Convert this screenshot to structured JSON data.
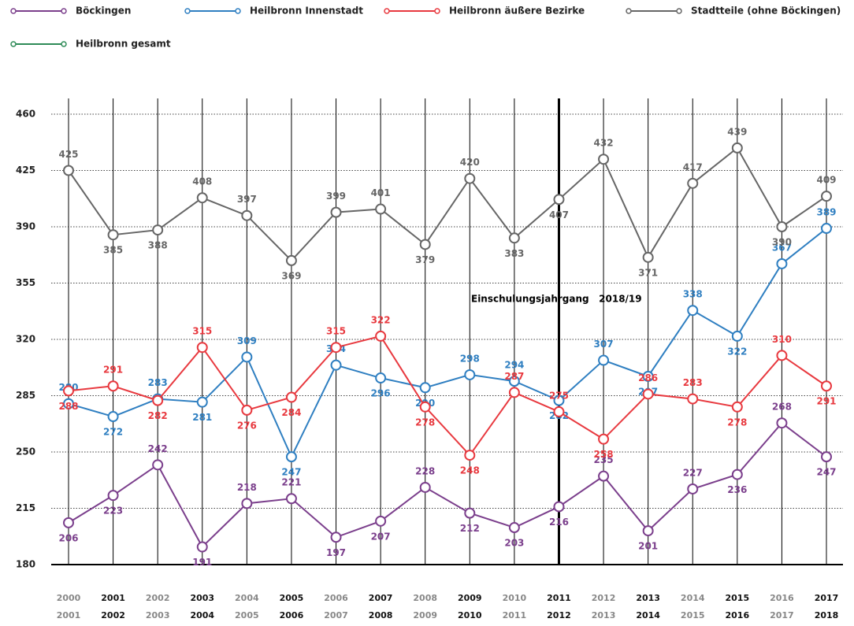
{
  "chart_data": {
    "type": "line",
    "categories": [
      [
        "2000",
        "2001"
      ],
      [
        "2001",
        "2002"
      ],
      [
        "2002",
        "2003"
      ],
      [
        "2003",
        "2004"
      ],
      [
        "2004",
        "2005"
      ],
      [
        "2005",
        "2006"
      ],
      [
        "2006",
        "2007"
      ],
      [
        "2007",
        "2008"
      ],
      [
        "2008",
        "2009"
      ],
      [
        "2009",
        "2010"
      ],
      [
        "2010",
        "2011"
      ],
      [
        "2011",
        "2012"
      ],
      [
        "2012",
        "2013"
      ],
      [
        "2013",
        "2014"
      ],
      [
        "2014",
        "2015"
      ],
      [
        "2015",
        "2016"
      ],
      [
        "2016",
        "2017"
      ],
      [
        "2017",
        "2018"
      ]
    ],
    "series": [
      {
        "name": "Böckingen",
        "color": "#7b3f8c",
        "values": [
          206,
          223,
          242,
          191,
          218,
          221,
          197,
          207,
          228,
          212,
          203,
          216,
          235,
          201,
          227,
          236,
          268,
          247
        ]
      },
      {
        "name": "Heilbronn Innenstadt",
        "color": "#2f7fc1",
        "values": [
          280,
          272,
          283,
          281,
          309,
          247,
          304,
          296,
          290,
          298,
          294,
          282,
          307,
          297,
          338,
          322,
          367,
          389
        ]
      },
      {
        "name": "Heilbronn äußere Bezirke",
        "color": "#e8393f",
        "values": [
          288,
          291,
          282,
          315,
          276,
          284,
          315,
          322,
          278,
          248,
          287,
          275,
          258,
          286,
          283,
          278,
          310,
          291
        ]
      },
      {
        "name": "Stadtteile (ohne Böckingen)",
        "color": "#666666",
        "values": [
          425,
          385,
          388,
          408,
          397,
          369,
          399,
          401,
          379,
          420,
          383,
          407,
          432,
          371,
          417,
          439,
          390,
          409
        ]
      },
      {
        "name": "Heilbronn gesamt",
        "color": "#2e8b57",
        "values": [
          null,
          null,
          null,
          null,
          null,
          null,
          null,
          null,
          null,
          null,
          null,
          null,
          null,
          null,
          null,
          null,
          null,
          null
        ]
      }
    ],
    "annotation": "Einschulungsjahrgang   2018/19",
    "highlight": 11,
    "ylim": [
      180,
      460
    ],
    "yticks": [
      180,
      215,
      250,
      285,
      320,
      355,
      390,
      425,
      460
    ],
    "grid": true
  }
}
